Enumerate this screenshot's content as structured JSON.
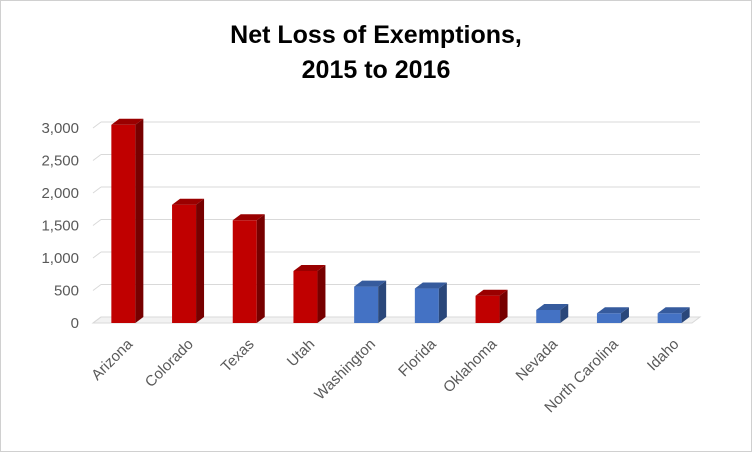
{
  "chart_data": {
    "type": "bar",
    "title_line1": "Net Loss of Exemptions,",
    "title_line2": "2015 to 2016",
    "xlabel": "",
    "ylabel": "",
    "ylim": [
      0,
      3000
    ],
    "yticks": [
      "0",
      "500",
      "1,000",
      "1,500",
      "2,000",
      "2,500",
      "3,000"
    ],
    "ytick_values": [
      0,
      500,
      1000,
      1500,
      2000,
      2500,
      3000
    ],
    "categories": [
      "Arizona",
      "Colorado",
      "Texas",
      "Utah",
      "Washington",
      "Florida",
      "Oklahoma",
      "Nevada",
      "North Carolina",
      "Idaho"
    ],
    "values": [
      3050,
      1820,
      1580,
      800,
      560,
      530,
      420,
      200,
      150,
      150
    ],
    "bar_colors": [
      "#c00000",
      "#c00000",
      "#c00000",
      "#c00000",
      "#4472c4",
      "#4472c4",
      "#c00000",
      "#4472c4",
      "#4472c4",
      "#4472c4"
    ],
    "grid": true,
    "legend": "none",
    "style": "3d-bar"
  }
}
